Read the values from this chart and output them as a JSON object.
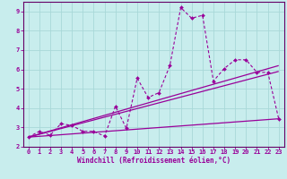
{
  "xlabel": "Windchill (Refroidissement éolien,°C)",
  "bg_color": "#c8eded",
  "grid_color": "#a8d8d8",
  "line_color": "#990099",
  "spine_color": "#660066",
  "xlim": [
    -0.5,
    23.5
  ],
  "ylim": [
    2.0,
    9.5
  ],
  "xticks": [
    0,
    1,
    2,
    3,
    4,
    5,
    6,
    7,
    8,
    9,
    10,
    11,
    12,
    13,
    14,
    15,
    16,
    17,
    18,
    19,
    20,
    21,
    22,
    23
  ],
  "yticks": [
    2,
    3,
    4,
    5,
    6,
    7,
    8,
    9
  ],
  "data_x": [
    0,
    1,
    2,
    3,
    4,
    5,
    6,
    7,
    8,
    9,
    10,
    11,
    12,
    13,
    14,
    15,
    16,
    17,
    18,
    19,
    20,
    21,
    22,
    23
  ],
  "data_y": [
    2.5,
    2.8,
    2.6,
    3.2,
    3.1,
    2.8,
    2.8,
    2.55,
    4.1,
    2.95,
    5.55,
    4.55,
    4.8,
    6.2,
    9.2,
    8.65,
    8.8,
    5.4,
    6.05,
    6.5,
    6.5,
    5.85,
    5.85,
    3.45
  ],
  "trend1_x": [
    0,
    23
  ],
  "trend1_y": [
    2.5,
    3.45
  ],
  "trend2_x": [
    0,
    23
  ],
  "trend2_y": [
    2.5,
    6.2
  ],
  "trend3_x": [
    0,
    23
  ],
  "trend3_y": [
    2.5,
    5.9
  ]
}
